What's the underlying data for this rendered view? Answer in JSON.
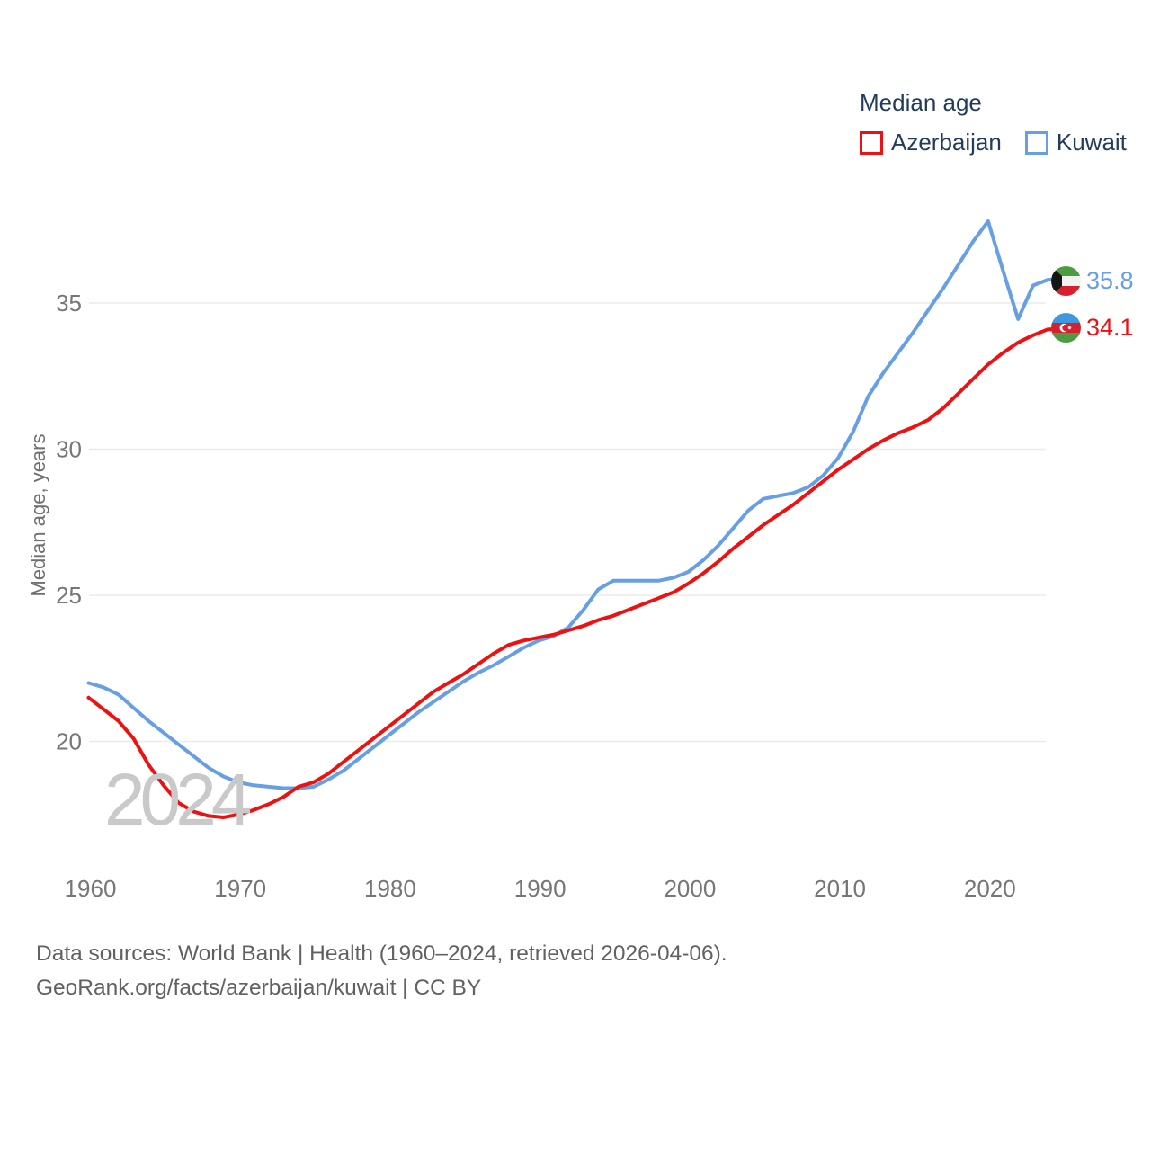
{
  "legend": {
    "title": "Median age"
  },
  "watermark": "2024",
  "sources": [
    "Data sources: World Bank | Health (1960–2024, retrieved 2026-04-06).",
    "GeoRank.org/facts/azerbaijan/kuwait | CC BY"
  ],
  "colors": {
    "azerbaijan_line": "#ee1111",
    "kuwait_line": "#669fe3",
    "legend_text": "#243c5c",
    "tick_text": "#767676",
    "gridline": "#ebebeb",
    "source_text": "#616161",
    "watermark": "#c9c9c9"
  },
  "icons": {
    "azerbaijan": "azerbaijan-flag-icon",
    "kuwait": "kuwait-flag-icon"
  },
  "chart_data": {
    "type": "line",
    "title": "Median age",
    "xlabel": "",
    "ylabel": "Median age, years",
    "xticks": [
      1960,
      1970,
      1980,
      1990,
      2000,
      2010,
      2020
    ],
    "yticks": [
      20,
      25,
      30,
      35
    ],
    "ylim": [
      16.5,
      38.5
    ],
    "xlim": [
      1960,
      2024
    ],
    "grid": "horizontal",
    "legend_position": "top-right",
    "x": [
      1960,
      1961,
      1962,
      1963,
      1964,
      1965,
      1966,
      1967,
      1968,
      1969,
      1970,
      1971,
      1972,
      1973,
      1974,
      1975,
      1976,
      1977,
      1978,
      1979,
      1980,
      1981,
      1982,
      1983,
      1984,
      1985,
      1986,
      1987,
      1988,
      1989,
      1990,
      1991,
      1992,
      1993,
      1994,
      1995,
      1996,
      1997,
      1998,
      1999,
      2000,
      2001,
      2002,
      2003,
      2004,
      2005,
      2006,
      2007,
      2008,
      2009,
      2010,
      2011,
      2012,
      2013,
      2014,
      2015,
      2016,
      2017,
      2018,
      2019,
      2020,
      2021,
      2022,
      2023,
      2024
    ],
    "series": [
      {
        "name": "Azerbaijan",
        "color": "#ee1111",
        "end_label": "34.1",
        "end_value": 34.1,
        "values": [
          21.5,
          21.1,
          20.7,
          20.1,
          19.2,
          18.5,
          17.9,
          17.6,
          17.45,
          17.4,
          17.5,
          17.65,
          17.85,
          18.1,
          18.45,
          18.6,
          18.9,
          19.3,
          19.7,
          20.1,
          20.5,
          20.9,
          21.3,
          21.7,
          22.0,
          22.3,
          22.65,
          23.0,
          23.3,
          23.45,
          23.55,
          23.65,
          23.8,
          23.95,
          24.15,
          24.3,
          24.5,
          24.7,
          24.9,
          25.1,
          25.4,
          25.75,
          26.15,
          26.6,
          27.0,
          27.4,
          27.75,
          28.1,
          28.5,
          28.9,
          29.3,
          29.65,
          30.0,
          30.3,
          30.55,
          30.75,
          31.0,
          31.4,
          31.9,
          32.4,
          32.9,
          33.3,
          33.65,
          33.9,
          34.1
        ]
      },
      {
        "name": "Kuwait",
        "color": "#669fe3",
        "end_label": "35.8",
        "end_value": 35.8,
        "values": [
          22.0,
          21.85,
          21.6,
          21.15,
          20.7,
          20.3,
          19.9,
          19.5,
          19.1,
          18.8,
          18.6,
          18.5,
          18.45,
          18.4,
          18.4,
          18.45,
          18.7,
          19.0,
          19.4,
          19.8,
          20.2,
          20.6,
          21.0,
          21.35,
          21.7,
          22.05,
          22.35,
          22.6,
          22.9,
          23.2,
          23.45,
          23.6,
          23.9,
          24.5,
          25.2,
          25.5,
          25.5,
          25.5,
          25.5,
          25.6,
          25.8,
          26.2,
          26.7,
          27.3,
          27.9,
          28.3,
          28.4,
          28.5,
          28.7,
          29.1,
          29.7,
          30.6,
          31.8,
          32.6,
          33.3,
          34.0,
          34.75,
          35.5,
          36.3,
          37.1,
          37.8,
          36.1,
          34.45,
          35.6,
          35.8
        ]
      }
    ]
  }
}
